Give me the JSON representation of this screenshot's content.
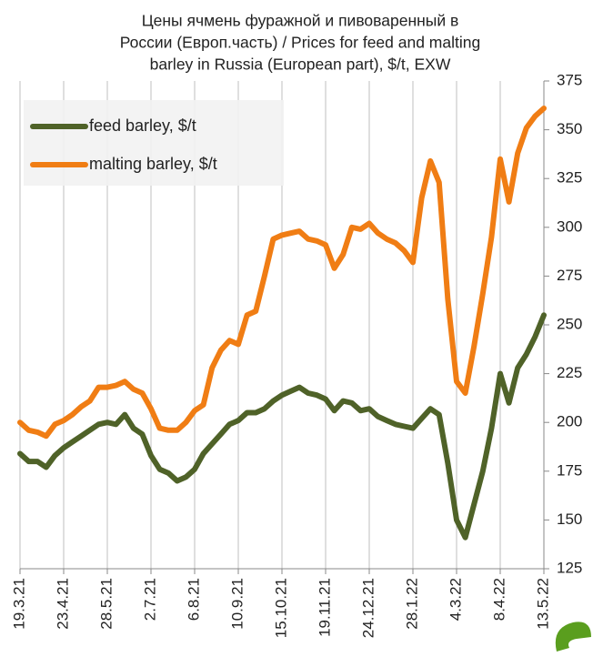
{
  "chart_data": {
    "type": "line",
    "title": [
      "Цены ячмень фуражной и пивоваренный в",
      "России (Европ.часть) / Prices for feed and malting",
      "barley in Russia (European part), $/t, EXW"
    ],
    "categories": [
      "19.3.21",
      null,
      null,
      null,
      null,
      "23.4.21",
      null,
      null,
      null,
      null,
      "28.5.21",
      null,
      null,
      null,
      null,
      "2.7.21",
      null,
      null,
      null,
      null,
      "6.8.21",
      null,
      null,
      null,
      null,
      "10.9.21",
      null,
      null,
      null,
      null,
      "15.10.21",
      null,
      null,
      null,
      null,
      "19.11.21",
      null,
      null,
      null,
      null,
      "24.12.21",
      null,
      null,
      null,
      null,
      "28.1.22",
      null,
      null,
      null,
      null,
      "4.3.22",
      null,
      null,
      null,
      null,
      "8.4.22",
      null,
      null,
      null,
      null,
      "13.5.22"
    ],
    "series": [
      {
        "name": "feed barley, $/t",
        "color": "#4f6228",
        "values": [
          184,
          180,
          180,
          177,
          183,
          187,
          190,
          193,
          196,
          199,
          200,
          199,
          204,
          197,
          194,
          183,
          176,
          174,
          170,
          172,
          176,
          184,
          189,
          194,
          199,
          201,
          205,
          205,
          207,
          211,
          214,
          216,
          218,
          215,
          214,
          212,
          206,
          211,
          210,
          206,
          207,
          203,
          201,
          199,
          198,
          197,
          202,
          207,
          204,
          179,
          150,
          141,
          158,
          175,
          197,
          225,
          210,
          228,
          235,
          244,
          255
        ]
      },
      {
        "name": "malting barley, $/t",
        "color": "#f07d14",
        "values": [
          200,
          196,
          195,
          193,
          199,
          201,
          204,
          208,
          211,
          218,
          218,
          219,
          221,
          217,
          215,
          207,
          197,
          196,
          196,
          200,
          206,
          209,
          228,
          237,
          242,
          240,
          255,
          257,
          275,
          294,
          296,
          297,
          298,
          294,
          293,
          291,
          279,
          286,
          300,
          299,
          302,
          297,
          294,
          292,
          288,
          282,
          315,
          334,
          323,
          263,
          221,
          215,
          239,
          266,
          295,
          335,
          313,
          338,
          351,
          357,
          361
        ]
      }
    ],
    "ylim": [
      125,
      375
    ],
    "yticks": [
      125,
      150,
      175,
      200,
      225,
      250,
      275,
      300,
      325,
      350,
      375
    ],
    "grid": "x",
    "legend": "upper left"
  }
}
